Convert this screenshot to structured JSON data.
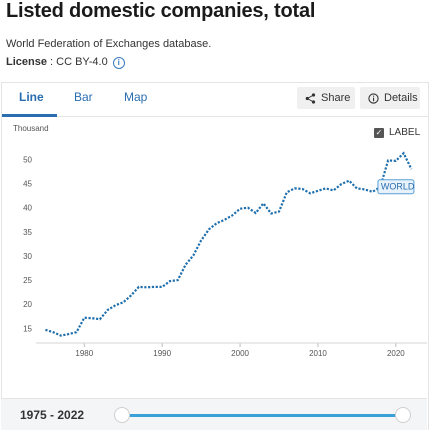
{
  "header": {
    "title": "Listed domestic companies, total",
    "source": "World Federation of Exchanges database.",
    "license_label": "License",
    "license_value": " : CC BY-4.0"
  },
  "tabs": [
    {
      "label": "Line",
      "active": true
    },
    {
      "label": "Bar",
      "active": false
    },
    {
      "label": "Map",
      "active": false
    }
  ],
  "toolbar": {
    "share_label": "Share",
    "details_label": "Details",
    "share_icon": "share-icon",
    "details_icon": "info-icon"
  },
  "label_toggle": {
    "label": "LABEL",
    "checked": true
  },
  "colors": {
    "accent": "#2a6db0",
    "line": "#1f6fad",
    "slider": "#39a0d8"
  },
  "chart_data": {
    "type": "line",
    "ylabel": "Thousand",
    "ylim": [
      13,
      53
    ],
    "xlim": [
      1972,
      2024
    ],
    "yticks": [
      15,
      20,
      25,
      30,
      35,
      40,
      45,
      50
    ],
    "xticks": [
      1980,
      1990,
      2000,
      2010,
      2020
    ],
    "grid": false,
    "series": [
      {
        "name": "WORLD",
        "x": [
          1975,
          1976,
          1977,
          1978,
          1979,
          1980,
          1981,
          1982,
          1983,
          1984,
          1985,
          1986,
          1987,
          1988,
          1989,
          1990,
          1991,
          1992,
          1993,
          1994,
          1995,
          1996,
          1997,
          1998,
          1999,
          2000,
          2001,
          2002,
          2003,
          2004,
          2005,
          2006,
          2007,
          2008,
          2009,
          2010,
          2011,
          2012,
          2013,
          2014,
          2015,
          2016,
          2017,
          2018,
          2019,
          2020,
          2021,
          2022
        ],
        "values": [
          14.7,
          14.2,
          13.5,
          13.8,
          14.2,
          17.2,
          17.1,
          16.9,
          18.8,
          19.8,
          20.4,
          21.8,
          23.6,
          23.5,
          23.6,
          23.6,
          24.8,
          25.0,
          28.2,
          30.1,
          33.2,
          35.5,
          36.8,
          37.5,
          38.4,
          39.8,
          40.0,
          38.9,
          40.9,
          38.8,
          39.2,
          43.2,
          44.0,
          43.9,
          43.0,
          43.5,
          44.0,
          43.6,
          44.9,
          45.6,
          44.0,
          43.8,
          43.3,
          44.3,
          49.8,
          49.7,
          51.3,
          48.0
        ]
      }
    ],
    "series_label": "WORLD"
  },
  "range": {
    "label": "1975 - 2022",
    "start": 1975,
    "end": 2022
  }
}
